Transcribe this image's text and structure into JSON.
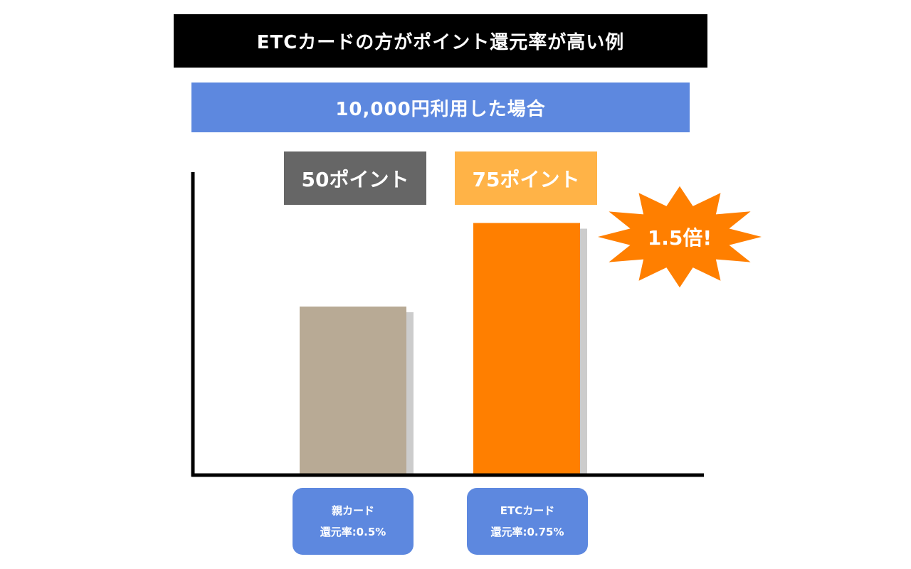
{
  "header": {
    "title": "ETCカードの方がポイント還元率が高い例",
    "subtitle": "10,000円利用した場合"
  },
  "colors": {
    "title_bg": "#000000",
    "subtitle_bg": "#5d88df",
    "label_bg": "#5d88df",
    "series": [
      "#b8aa95",
      "#ff7f00"
    ],
    "value_label_bg": [
      "#666666",
      "#ffb347"
    ],
    "shadow": "#cccccc",
    "burst": "#ff7f00"
  },
  "chart_data": {
    "type": "bar",
    "categories": [
      "親カード\n還元率:0.5%",
      "ETCカード\n還元率:0.75%"
    ],
    "values": [
      50,
      75
    ],
    "value_labels": [
      "50ポイント",
      "75ポイント"
    ],
    "ylim": [
      0,
      100
    ],
    "grid": false,
    "annotation": "1.5倍!"
  },
  "labels": {
    "cat1_line1": "親カード",
    "cat1_line2": "還元率:0.5%",
    "cat2_line1": "ETCカード",
    "cat2_line2": "還元率:0.75%"
  }
}
